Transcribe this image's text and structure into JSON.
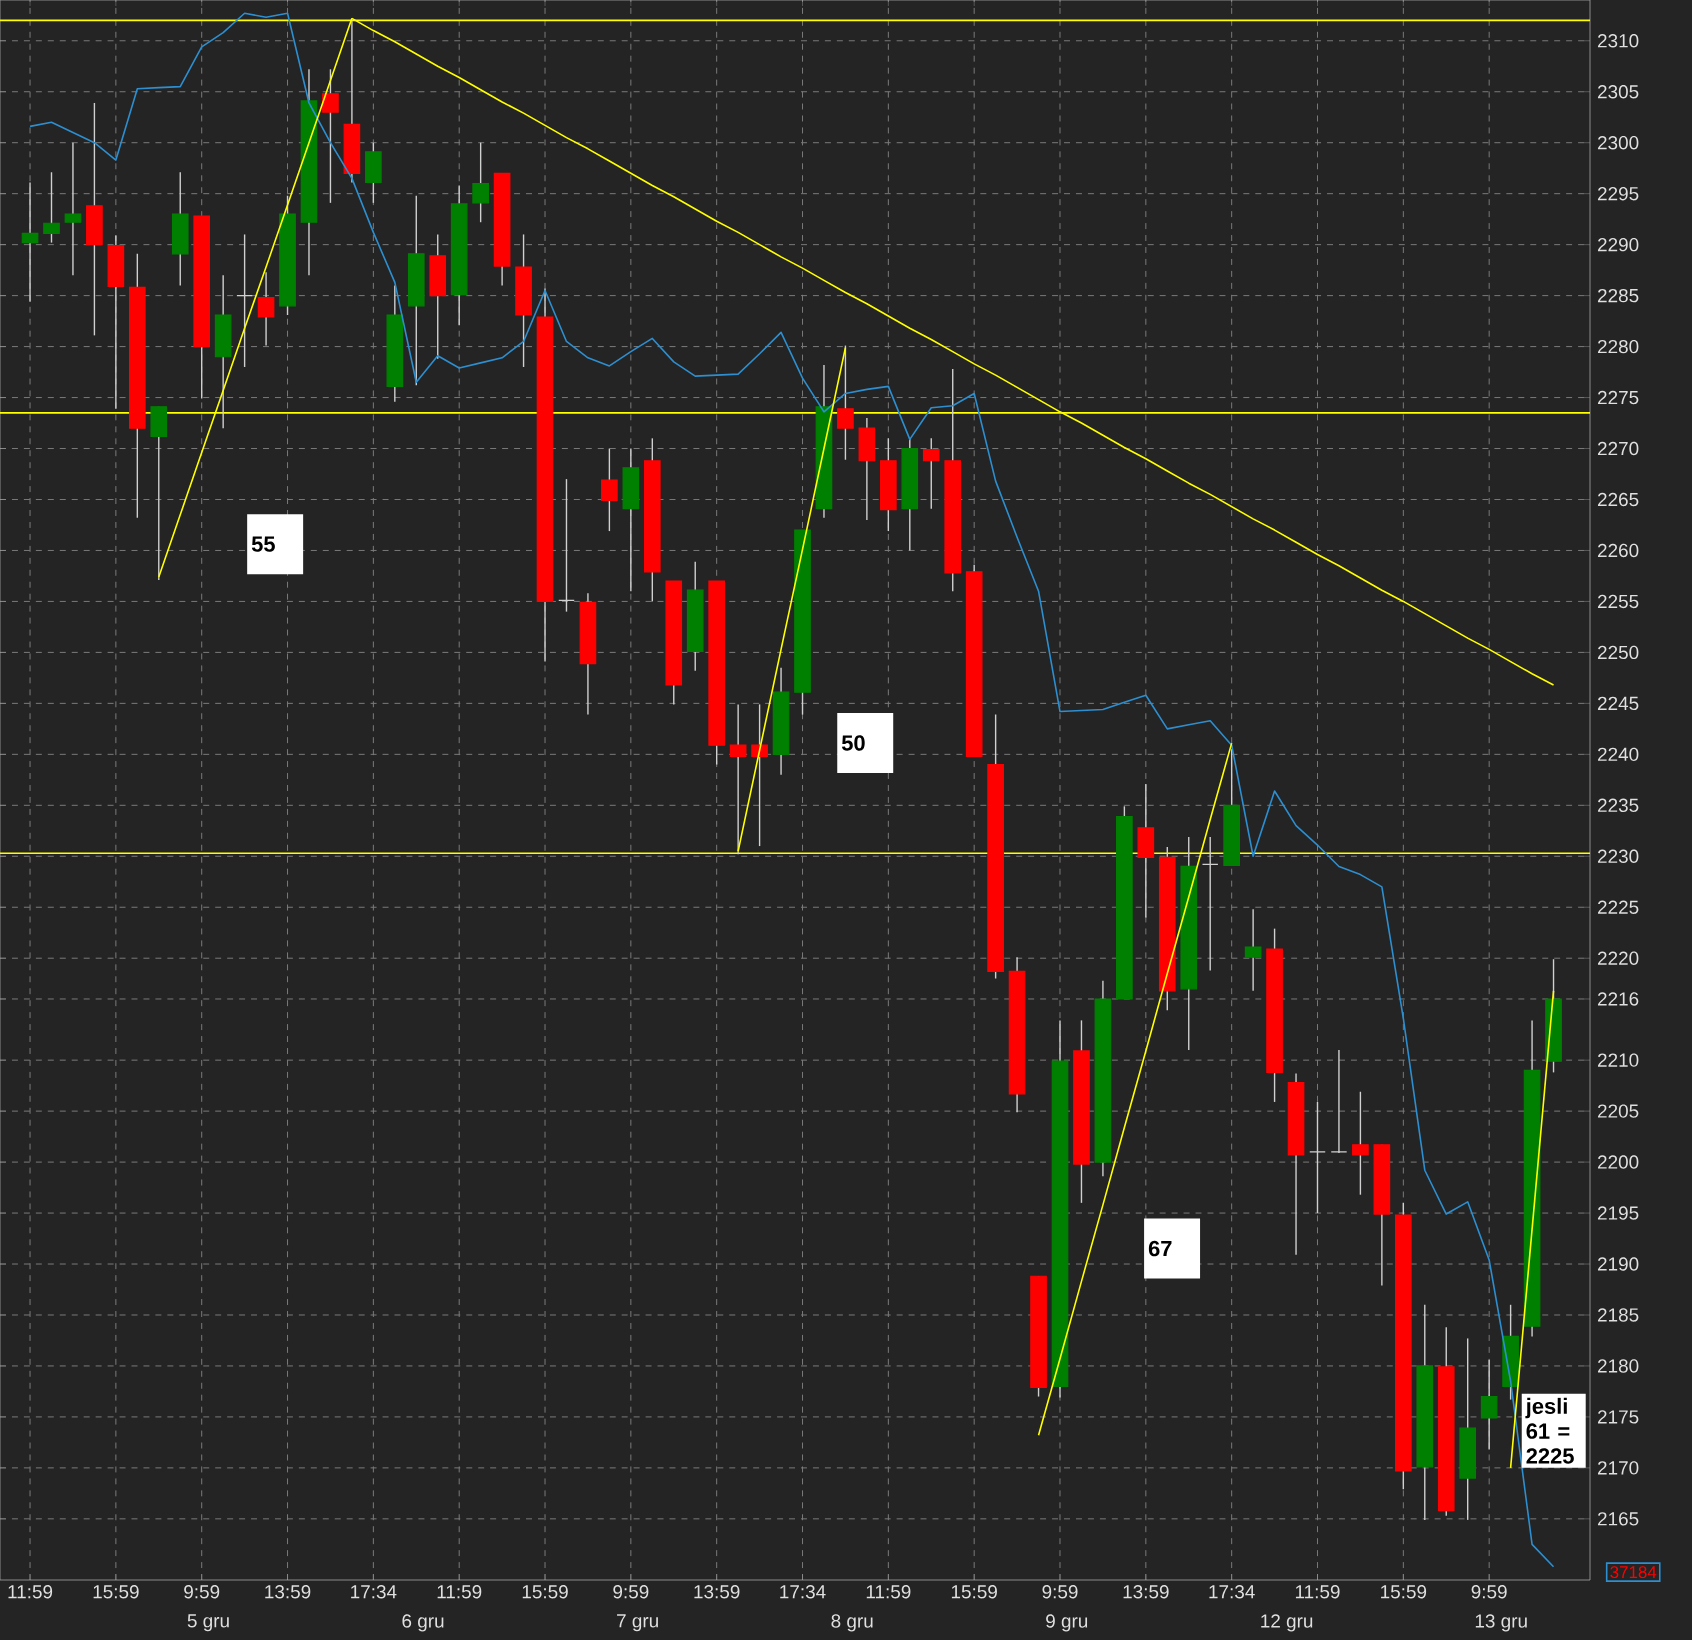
{
  "chart_data": {
    "type": "candlestick",
    "categories": [
      "11:59",
      null,
      null,
      null,
      "15:59",
      null,
      null,
      null,
      "9:59",
      null,
      null,
      null,
      "13:59",
      null,
      null,
      null,
      "17:34",
      null,
      null,
      null,
      "11:59",
      null,
      null,
      null,
      "15:59",
      null,
      null,
      null,
      "9:59",
      null,
      null,
      null,
      "13:59",
      null,
      null,
      null,
      "17:34",
      null,
      null,
      null,
      "11:59",
      null,
      null,
      null,
      "15:59",
      null,
      null,
      null,
      "9:59",
      null,
      null,
      null,
      "13:59",
      null,
      null,
      null,
      "17:34",
      null,
      null,
      null,
      "11:59",
      null,
      null,
      null,
      "15:59",
      null,
      null,
      null,
      "9:59",
      null,
      null,
      null
    ],
    "ohlc": [
      [
        2290.2,
        2296.1,
        2284.4,
        2291.1
      ],
      [
        2291.1,
        2297.1,
        2290.2,
        2292.1
      ],
      [
        2292.2,
        2300.0,
        2287.0,
        2293.0
      ],
      [
        2293.8,
        2303.9,
        2281.1,
        2290.0
      ],
      [
        2289.9,
        2290.9,
        2273.9,
        2285.9
      ],
      [
        2285.8,
        2289.1,
        2263.2,
        2272.0
      ],
      [
        2271.2,
        2274.1,
        2257.1,
        2274.1
      ],
      [
        2289.1,
        2297.1,
        2286.0,
        2293.0
      ],
      [
        2292.8,
        2292.8,
        2274.9,
        2280.0
      ],
      [
        2279.0,
        2287.0,
        2272.0,
        2283.1
      ],
      [
        2285.0,
        2291.0,
        2278.0,
        2285.0
      ],
      [
        2284.8,
        2287.3,
        2280.1,
        2282.9
      ],
      [
        2284.0,
        2294.8,
        2283.1,
        2293.0
      ],
      [
        2292.2,
        2307.2,
        2287.0,
        2304.1
      ],
      [
        2304.8,
        2307.2,
        2294.1,
        2303.0
      ],
      [
        2301.8,
        2312.0,
        2296.1,
        2297.0
      ],
      [
        2296.1,
        2300.0,
        2294.1,
        2299.1
      ],
      [
        2276.1,
        2286.0,
        2274.6,
        2283.1
      ],
      [
        2284.0,
        2294.8,
        2276.2,
        2289.1
      ],
      [
        2288.9,
        2291.0,
        2278.8,
        2285.0
      ],
      [
        2285.1,
        2295.8,
        2282.1,
        2294.0
      ],
      [
        2294.1,
        2300.0,
        2292.2,
        2296.0
      ],
      [
        2297.0,
        2297.0,
        2286.0,
        2287.9
      ],
      [
        2287.8,
        2291.0,
        2278.0,
        2283.1
      ],
      [
        2282.9,
        2285.7,
        2249.1,
        2255.0
      ],
      [
        2255.1,
        2267.0,
        2254.0,
        2255.1
      ],
      [
        2254.9,
        2255.8,
        2243.9,
        2248.9
      ],
      [
        2266.9,
        2270.0,
        2261.9,
        2264.9
      ],
      [
        2264.1,
        2270.0,
        2256.0,
        2268.1
      ],
      [
        2268.8,
        2271.0,
        2255.0,
        2257.9
      ],
      [
        2257.0,
        2257.0,
        2244.9,
        2246.8
      ],
      [
        2250.1,
        2258.9,
        2248.2,
        2256.1
      ],
      [
        2257.0,
        2257.0,
        2239.0,
        2240.9
      ],
      [
        2240.9,
        2244.9,
        2230.2,
        2239.8
      ],
      [
        2240.9,
        2244.9,
        2231.0,
        2239.8
      ],
      [
        2240.0,
        2248.5,
        2238.0,
        2246.1
      ],
      [
        2246.1,
        2262.0,
        2243.9,
        2262.0
      ],
      [
        2264.1,
        2278.2,
        2263.2,
        2274.1
      ],
      [
        2273.9,
        2280.1,
        2268.9,
        2272.0
      ],
      [
        2272.0,
        2273.0,
        2263.0,
        2268.8
      ],
      [
        2268.8,
        2271.0,
        2261.9,
        2264.0
      ],
      [
        2264.1,
        2271.0,
        2260.0,
        2270.0
      ],
      [
        2269.9,
        2271.0,
        2264.1,
        2268.8
      ],
      [
        2268.8,
        2277.8,
        2256.0,
        2257.8
      ],
      [
        2257.9,
        2258.6,
        2239.8,
        2239.8
      ],
      [
        2239.0,
        2243.9,
        2218.0,
        2218.7
      ],
      [
        2218.7,
        2220.1,
        2204.9,
        2206.7
      ],
      [
        2188.8,
        2188.8,
        2177.0,
        2177.9
      ],
      [
        2178.0,
        2213.9,
        2176.9,
        2209.9
      ],
      [
        2210.9,
        2213.9,
        2196.0,
        2199.8
      ],
      [
        2200.0,
        2217.8,
        2198.6,
        2216.0
      ],
      [
        2216.0,
        2234.9,
        2216.0,
        2233.9
      ],
      [
        2232.8,
        2237.1,
        2224.0,
        2229.9
      ],
      [
        2229.9,
        2230.9,
        2214.9,
        2216.8
      ],
      [
        2217.0,
        2231.9,
        2211.0,
        2229.0
      ],
      [
        2229.2,
        2231.9,
        2218.8,
        2229.2
      ],
      [
        2229.1,
        2240.5,
        2229.1,
        2235.0
      ],
      [
        2220.1,
        2224.8,
        2216.8,
        2221.1
      ],
      [
        2220.9,
        2222.9,
        2205.9,
        2208.8
      ],
      [
        2207.8,
        2208.7,
        2190.9,
        2200.7
      ],
      [
        2201.0,
        2205.9,
        2195.0,
        2201.0
      ],
      [
        2201.0,
        2211.0,
        2200.9,
        2201.0
      ],
      [
        2201.7,
        2206.9,
        2196.8,
        2200.7
      ],
      [
        2201.7,
        2201.7,
        2187.9,
        2194.9
      ],
      [
        2194.8,
        2196.0,
        2167.9,
        2169.7
      ],
      [
        2170.1,
        2186.0,
        2164.9,
        2180.0
      ],
      [
        2179.9,
        2183.8,
        2165.3,
        2165.8
      ],
      [
        2169.0,
        2182.7,
        2164.9,
        2173.9
      ],
      [
        2174.9,
        2180.6,
        2171.8,
        2177.0
      ],
      [
        2178.0,
        2186.0,
        2176.7,
        2182.9
      ],
      [
        2183.9,
        2213.9,
        2182.9,
        2209.0
      ],
      [
        2209.9,
        2219.9,
        2208.8,
        2216.0
      ]
    ],
    "colors": [
      "#008000",
      "#008000",
      "#008000",
      "#ff0000",
      "#ff0000",
      "#ff0000",
      "#008000",
      "#008000",
      "#ff0000",
      "#008000",
      "#d0d0d0",
      "#ff0000",
      "#008000",
      "#008000",
      "#ff0000",
      "#ff0000",
      "#008000",
      "#008000",
      "#008000",
      "#ff0000",
      "#008000",
      "#008000",
      "#ff0000",
      "#ff0000",
      "#ff0000",
      "#d0d0d0",
      "#ff0000",
      "#ff0000",
      "#008000",
      "#ff0000",
      "#ff0000",
      "#008000",
      "#ff0000",
      "#ff0000",
      "#ff0000",
      "#008000",
      "#008000",
      "#008000",
      "#ff0000",
      "#ff0000",
      "#ff0000",
      "#008000",
      "#ff0000",
      "#ff0000",
      "#ff0000",
      "#ff0000",
      "#ff0000",
      "#ff0000",
      "#008000",
      "#ff0000",
      "#008000",
      "#008000",
      "#ff0000",
      "#ff0000",
      "#008000",
      "#d0d0d0",
      "#008000",
      "#008000",
      "#ff0000",
      "#ff0000",
      "#d0d0d0",
      "#d0d0d0",
      "#ff0000",
      "#ff0000",
      "#ff0000",
      "#008000",
      "#ff0000",
      "#008000",
      "#008000",
      "#008000",
      "#008000",
      "#008000"
    ],
    "ylim": [
      2159,
      2314
    ],
    "yticks": [
      2165,
      2170,
      2175,
      2180,
      2185,
      2190,
      2195,
      2200,
      2205,
      2210,
      2216,
      2220,
      2225,
      2230,
      2235,
      2240,
      2245,
      2250,
      2255,
      2260,
      2265,
      2270,
      2275,
      2280,
      2285,
      2290,
      2295,
      2300,
      2305,
      2310
    ],
    "grid": true,
    "series": [
      {
        "type": "line",
        "color": "#2d8fd0",
        "values": [
          2301.6,
          2302.0,
          2301.0,
          2300.0,
          2298.3,
          2305.3,
          2305.4,
          2305.5,
          2309.4,
          2310.8,
          2312.7,
          2312.3,
          2312.7,
          2303.9,
          2300.0,
          2296.5,
          2291.2,
          2286.3,
          2276.5,
          2279.1,
          2277.9,
          2278.4,
          2278.9,
          2280.5,
          2285.5,
          2280.5,
          2278.9,
          2278.1,
          2279.5,
          2280.8,
          2278.5,
          2277.1,
          2277.2,
          2277.3,
          2279.3,
          2281.4,
          2276.9,
          2273.6,
          2275.4,
          2275.8,
          2276.1,
          2270.9,
          2274.0,
          2274.2,
          2275.4,
          2266.8,
          2261.3,
          2256.0,
          2244.2,
          2244.3,
          2244.4,
          2245.1,
          2245.8,
          2242.5,
          2242.9,
          2243.3,
          2240.9,
          2230.0,
          2236.4,
          2233.0,
          2231.1,
          2229.0,
          2228.2,
          2227.0,
          2214.1,
          2199.2,
          2194.9,
          2196.1,
          2190.4,
          2178.5,
          2162.5,
          2160.3
        ]
      },
      {
        "type": "line",
        "color": "#ffff00",
        "values": [
          null,
          null,
          null,
          null,
          null,
          null,
          2257.4,
          2263.5,
          2269.6,
          2275.7,
          2281.8,
          2287.8,
          2293.9,
          2300.0,
          2306.1,
          2312.2,
          null,
          null,
          null,
          null,
          null,
          null,
          null,
          null,
          null,
          null,
          null,
          null,
          null,
          null,
          null,
          null,
          null,
          null,
          null,
          null,
          null,
          null,
          null,
          null,
          null,
          null,
          null,
          null,
          null,
          null,
          null,
          null,
          null,
          null,
          null,
          null,
          null,
          null,
          null,
          null,
          null,
          null,
          null,
          null,
          null,
          null,
          null,
          null,
          null,
          null,
          null,
          null,
          null,
          null,
          null,
          null
        ]
      },
      {
        "type": "line",
        "color": "#ffff00",
        "values": [
          null,
          null,
          null,
          null,
          null,
          null,
          null,
          null,
          null,
          null,
          null,
          null,
          null,
          null,
          null,
          2312.2,
          2311.0,
          2309.9,
          2308.7,
          2307.5,
          2306.4,
          2305.2,
          2304.0,
          2302.9,
          2301.7,
          2300.5,
          2299.4,
          2298.2,
          2297.0,
          2295.8,
          2294.7,
          2293.5,
          2292.3,
          2291.2,
          2290.0,
          2288.8,
          2287.7,
          2286.5,
          2285.3,
          2284.2,
          2283.0,
          2281.8,
          2280.7,
          2279.5,
          2278.3,
          2277.2,
          2276.0,
          2274.8,
          2273.6,
          2272.5,
          2271.3,
          2270.1,
          2269.0,
          2267.8,
          2266.6,
          2265.5,
          2264.3,
          2263.1,
          2262.0,
          2260.8,
          2259.6,
          2258.5,
          2257.3,
          2256.1,
          2255.0,
          2253.8,
          2252.6,
          2251.4,
          2250.3,
          2249.1,
          2247.9,
          2246.8
        ]
      },
      {
        "type": "line",
        "color": "#ffff00",
        "values": [
          null,
          null,
          null,
          null,
          null,
          null,
          null,
          null,
          null,
          null,
          null,
          null,
          null,
          null,
          null,
          null,
          null,
          null,
          null,
          null,
          null,
          null,
          null,
          null,
          null,
          null,
          null,
          null,
          null,
          null,
          null,
          null,
          null,
          2230.5,
          2240.4,
          2250.3,
          2260.1,
          2270.0,
          2279.9,
          null,
          null,
          null,
          null,
          null,
          null,
          null,
          null,
          null,
          null,
          null,
          null,
          null,
          null,
          null,
          null,
          null,
          null,
          null,
          null,
          null,
          null,
          null,
          null,
          null,
          null,
          null,
          null,
          null,
          null,
          null,
          null,
          null
        ]
      },
      {
        "type": "line",
        "color": "#ffff00",
        "values": [
          null,
          null,
          null,
          null,
          null,
          null,
          null,
          null,
          null,
          null,
          null,
          null,
          null,
          null,
          null,
          null,
          null,
          null,
          null,
          null,
          null,
          null,
          null,
          null,
          null,
          null,
          null,
          null,
          null,
          null,
          null,
          null,
          null,
          null,
          null,
          null,
          null,
          null,
          null,
          null,
          null,
          null,
          null,
          null,
          null,
          null,
          null,
          2173.2,
          2180.7,
          2188.3,
          2195.8,
          2203.4,
          2210.9,
          2218.5,
          2226.0,
          2233.6,
          2241.1,
          null,
          null,
          null,
          null,
          null,
          null,
          null,
          null,
          null,
          null,
          null,
          null,
          null,
          null,
          null
        ]
      },
      {
        "type": "line",
        "color": "#ffff00",
        "values": [
          null,
          null,
          null,
          null,
          null,
          null,
          null,
          null,
          null,
          null,
          null,
          null,
          null,
          null,
          null,
          null,
          null,
          null,
          null,
          null,
          null,
          null,
          null,
          null,
          null,
          null,
          null,
          null,
          null,
          null,
          null,
          null,
          null,
          null,
          null,
          null,
          null,
          null,
          null,
          null,
          null,
          null,
          null,
          null,
          null,
          null,
          null,
          null,
          null,
          null,
          null,
          null,
          null,
          null,
          null,
          null,
          null,
          null,
          null,
          null,
          null,
          null,
          null,
          null,
          null,
          null,
          null,
          null,
          null,
          2170.0,
          2193.4,
          2216.8
        ]
      }
    ],
    "ref_lines": [
      {
        "axis": "y",
        "value": 2312,
        "color": "#ffff00"
      },
      {
        "axis": "y",
        "value": 2273.5,
        "color": "#ffff00"
      },
      {
        "axis": "y",
        "value": 2230.3,
        "color": "#ffff00"
      }
    ],
    "annotations": [
      "55",
      "50",
      "67",
      "jesli 61 = 2225",
      "5 gru",
      "6 gru",
      "7 gru",
      "8 gru",
      "9 gru",
      "12 gru",
      "13 gru",
      "37184"
    ]
  }
}
